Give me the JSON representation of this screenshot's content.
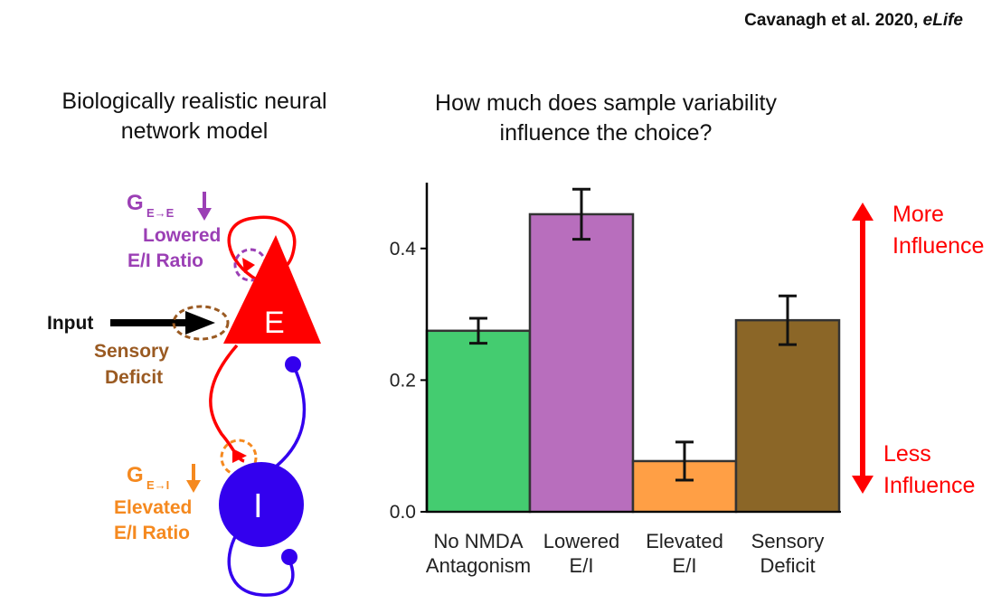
{
  "citation": {
    "authors": "Cavanagh et al. 2020, ",
    "journal": "eLife"
  },
  "left_title": {
    "line1": "Biologically realistic neural",
    "line2": "network model"
  },
  "diagram": {
    "gee_label": "G",
    "gee_sub": "E→E",
    "lowered_label": {
      "line1": "Lowered",
      "line2": "E/I Ratio"
    },
    "input_label": "Input",
    "sensory_label": {
      "line1": "Sensory",
      "line2": "Deficit"
    },
    "gei_label": "G",
    "gei_sub": "E→I",
    "elevated_label": {
      "line1": "Elevated",
      "line2": "E/I Ratio"
    },
    "e_node": "E",
    "i_node": "I",
    "colors": {
      "excitatory": "#ff0000",
      "inhibitory": "#3300ee",
      "lowered": "#9b3fb5",
      "sensory": "#9a5a22",
      "elevated": "#f5891f"
    },
    "icons": {
      "down-arrow-icon": "down arrow",
      "input-arrow-icon": "right arrow"
    }
  },
  "chart_title": {
    "line1": "How much does sample variability",
    "line2": "influence the choice?"
  },
  "chart_data": {
    "type": "bar",
    "title": "How much does sample variability influence the choice?",
    "categories": [
      {
        "line1": "No NMDA",
        "line2": "Antagonism"
      },
      {
        "line1": "Lowered",
        "line2": "E/I"
      },
      {
        "line1": "Elevated",
        "line2": "E/I"
      },
      {
        "line1": "Sensory",
        "line2": "Deficit"
      }
    ],
    "values": [
      0.275,
      0.452,
      0.077,
      0.291
    ],
    "error": [
      0.019,
      0.038,
      0.029,
      0.037
    ],
    "colors": [
      "#44cc70",
      "#b86ebd",
      "#ff9f45",
      "#8b6627"
    ],
    "ylim": [
      0,
      0.5
    ],
    "yticks": [
      0.0,
      0.2,
      0.4
    ],
    "ytick_labels": [
      "0.0",
      "0.2",
      "0.4"
    ],
    "xlabel": "",
    "ylabel": "",
    "grid": false
  },
  "side_arrow": {
    "more": {
      "line1": "More",
      "line2": "Influence"
    },
    "less": {
      "line1": "Less",
      "line2": "Influence"
    },
    "color": "#ff0000",
    "icon": "double-headed-vertical-arrow-icon"
  }
}
